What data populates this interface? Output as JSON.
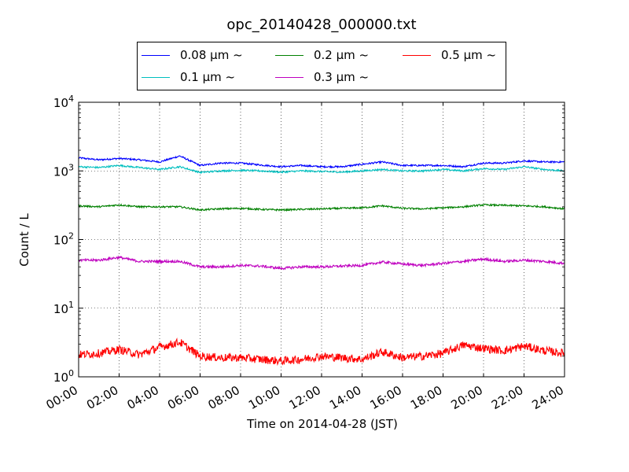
{
  "chart_data": {
    "type": "line",
    "title": "opc_20140428_000000.txt",
    "xlabel": "Time on 2014-04-28 (JST)",
    "ylabel": "Count / L",
    "yscale": "log",
    "ylim": [
      1,
      10000
    ],
    "xlim": [
      "00:00",
      "24:00"
    ],
    "grid": true,
    "legend_position": "top-center",
    "x_ticks": [
      "00:00",
      "02:00",
      "04:00",
      "06:00",
      "08:00",
      "10:00",
      "12:00",
      "14:00",
      "16:00",
      "18:00",
      "20:00",
      "22:00",
      "24:00"
    ],
    "y_ticks": [
      {
        "base": "10",
        "exp": "0"
      },
      {
        "base": "10",
        "exp": "1"
      },
      {
        "base": "10",
        "exp": "2"
      },
      {
        "base": "10",
        "exp": "3"
      },
      {
        "base": "10",
        "exp": "4"
      }
    ],
    "x": [
      "00:00",
      "01:00",
      "02:00",
      "03:00",
      "04:00",
      "05:00",
      "06:00",
      "07:00",
      "08:00",
      "09:00",
      "10:00",
      "11:00",
      "12:00",
      "13:00",
      "14:00",
      "15:00",
      "16:00",
      "17:00",
      "18:00",
      "19:00",
      "20:00",
      "21:00",
      "22:00",
      "23:00",
      "24:00"
    ],
    "series": [
      {
        "name": "0.08 μm ~",
        "color": "#0000ff",
        "values": [
          1550,
          1450,
          1520,
          1450,
          1350,
          1650,
          1200,
          1300,
          1300,
          1220,
          1150,
          1200,
          1150,
          1150,
          1250,
          1350,
          1200,
          1200,
          1200,
          1150,
          1300,
          1300,
          1400,
          1350,
          1350
        ]
      },
      {
        "name": "0.1 μm ~",
        "color": "#00bfbf",
        "values": [
          1150,
          1120,
          1200,
          1120,
          1050,
          1150,
          950,
          1000,
          1020,
          1000,
          960,
          1000,
          980,
          960,
          1000,
          1050,
          1000,
          1000,
          1050,
          1000,
          1080,
          1050,
          1150,
          1050,
          1000
        ]
      },
      {
        "name": "0.2 μm ~",
        "color": "#008000",
        "values": [
          310,
          300,
          320,
          300,
          300,
          300,
          270,
          280,
          285,
          275,
          270,
          275,
          280,
          285,
          290,
          310,
          285,
          280,
          290,
          300,
          320,
          315,
          310,
          300,
          280
        ]
      },
      {
        "name": "0.3 μm ~",
        "color": "#bf00bf",
        "values": [
          50,
          50,
          55,
          48,
          48,
          48,
          40,
          40,
          42,
          41,
          38,
          40,
          40,
          41,
          42,
          47,
          44,
          42,
          45,
          48,
          52,
          48,
          50,
          48,
          45
        ]
      },
      {
        "name": "0.5 μm ~",
        "color": "#ff0000",
        "values": [
          2.1,
          2.2,
          2.5,
          2.1,
          2.7,
          3.2,
          2.0,
          1.9,
          1.9,
          1.8,
          1.7,
          1.8,
          2.0,
          1.9,
          1.8,
          2.3,
          1.9,
          2.0,
          2.2,
          2.9,
          2.6,
          2.4,
          2.8,
          2.4,
          2.2
        ]
      }
    ]
  }
}
